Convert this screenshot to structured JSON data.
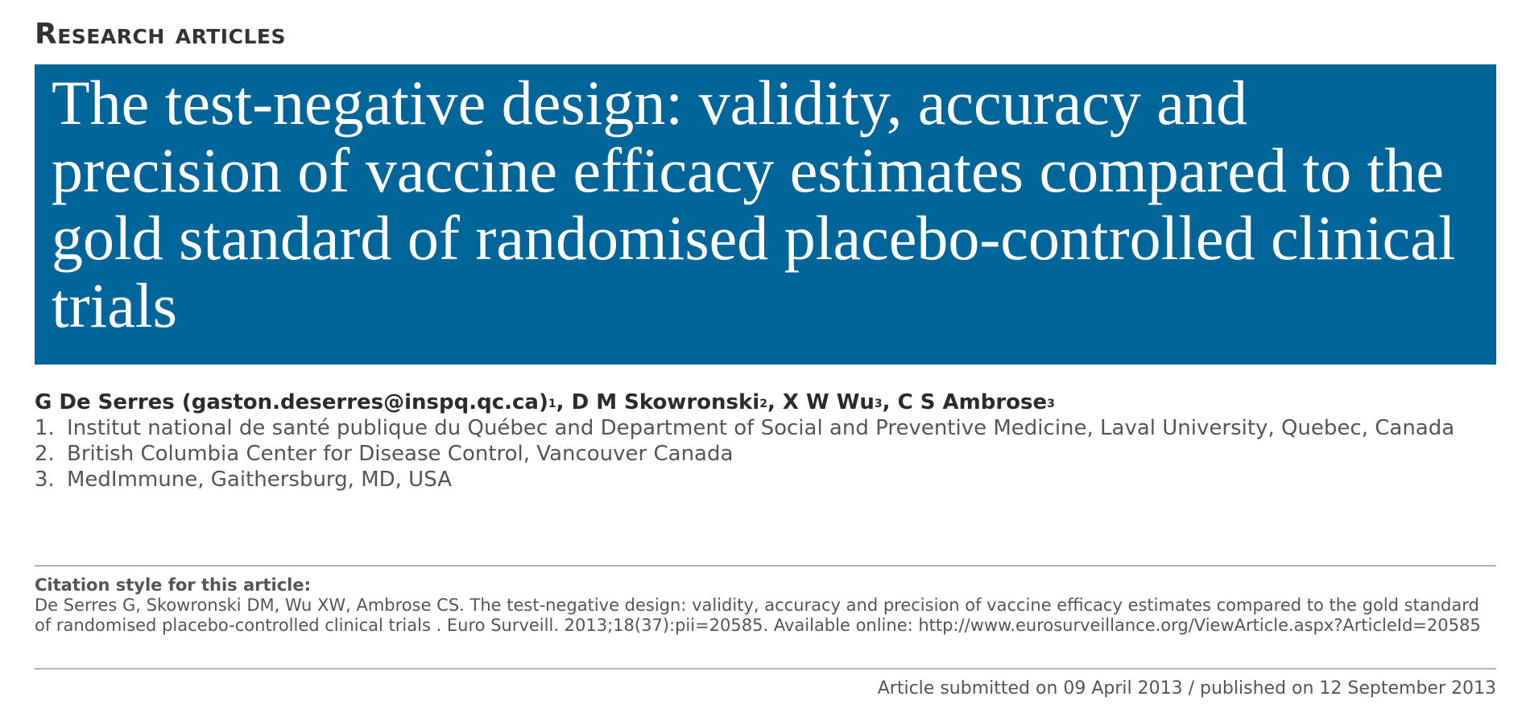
{
  "section": {
    "label": "Research articles"
  },
  "article": {
    "title": "The test-negative design: validity, accuracy and precision of vaccine efficacy estimates compared to the gold standard of randomised placebo-controlled clinical trials"
  },
  "authors": [
    {
      "name": "G De Serres (gaston.deserres@inspq.qc.ca)",
      "affil": "1"
    },
    {
      "name": "D M Skowronski",
      "affil": "2"
    },
    {
      "name": "X W Wu",
      "affil": "3"
    },
    {
      "name": "C S Ambrose",
      "affil": "3"
    }
  ],
  "affiliations": [
    {
      "num": "1.",
      "text": "Institut national de santé publique du Québec and Department of Social and Preventive Medicine, Laval University, Quebec, Canada"
    },
    {
      "num": "2.",
      "text": "British Columbia Center for Disease Control, Vancouver Canada"
    },
    {
      "num": "3.",
      "text": "MedImmune, Gaithersburg, MD, USA"
    }
  ],
  "citation": {
    "heading": "Citation style for this article:",
    "text": "De Serres G, Skowronski DM, Wu XW, Ambrose CS. The test-negative design: validity, accuracy and precision of vaccine efficacy estimates compared to the gold standard of randomised placebo-controlled clinical trials . Euro Surveill. 2013;18(37):pii=20585. Available online: http://www.eurosurveillance.org/ViewArticle.aspx?ArticleId=20585"
  },
  "dates": {
    "text": "Article submitted on 09 April 2013 / published on 12 September 2013"
  },
  "colors": {
    "banner": "#006699",
    "banner_text": "#ffffff",
    "rule": "#b3b3b3"
  }
}
